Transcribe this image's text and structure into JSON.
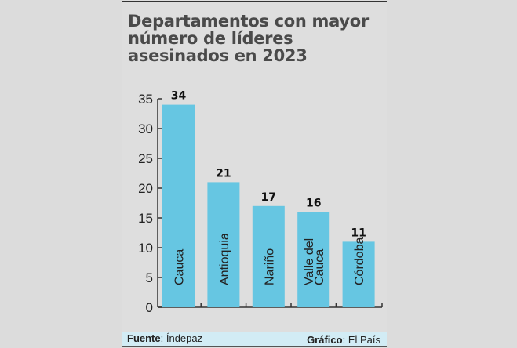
{
  "chart_data": {
    "type": "bar",
    "title": "Departamentos con mayor número de líderes asesinados en 2023",
    "categories": [
      "Cauca",
      "Antioquia",
      "Nariño",
      "Valle del Cauca",
      "Córdoba"
    ],
    "category_lines": [
      [
        "Cauca"
      ],
      [
        "Antioquia"
      ],
      [
        "Nariño"
      ],
      [
        "Valle del",
        "Cauca"
      ],
      [
        "Córdoba"
      ]
    ],
    "values": [
      34,
      21,
      17,
      16,
      11
    ],
    "data_labels": [
      "34",
      "21",
      "17",
      "16",
      "11"
    ],
    "ylim": [
      0,
      35
    ],
    "yticks": [
      "0",
      "5",
      "10",
      "15",
      "20",
      "25",
      "30",
      "35"
    ],
    "xlabel": "",
    "ylabel": "",
    "grid": false,
    "bar_color": "#66c6e2"
  },
  "footer": {
    "source_label": "Fuente",
    "source_value": "Índepaz",
    "credit_label": "Gráfico",
    "credit_value": "El País"
  }
}
